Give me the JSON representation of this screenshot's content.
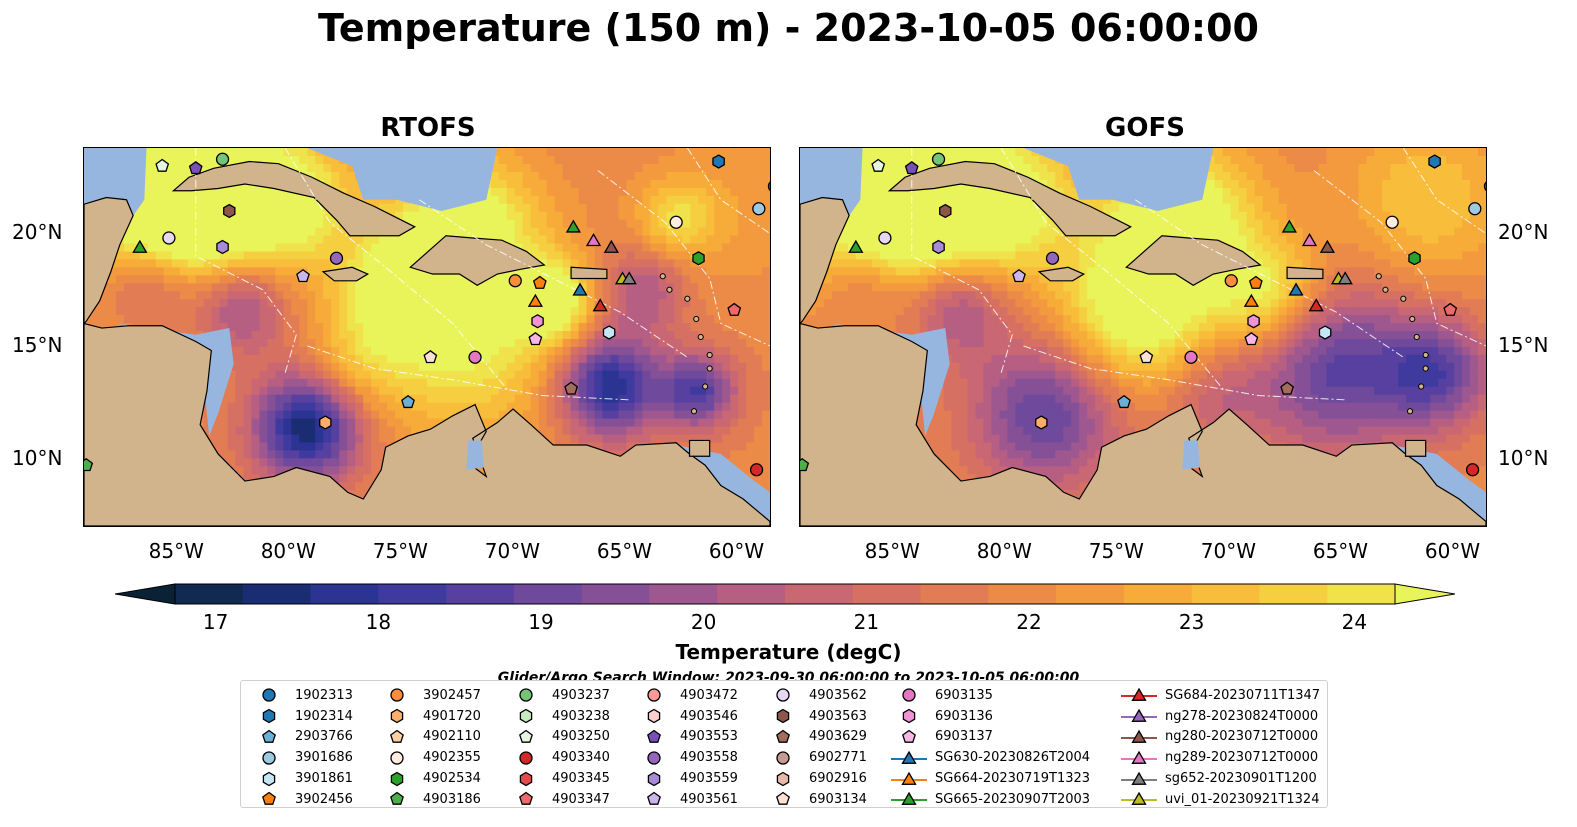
{
  "title": "Temperature (150 m) - 2023-10-05 06:00:00",
  "panels": [
    {
      "title": "RTOFS"
    },
    {
      "title": "GOFS"
    }
  ],
  "x_ticks": [
    "85°W",
    "80°W",
    "75°W",
    "70°W",
    "65°W",
    "60°W"
  ],
  "y_ticks": [
    "20°N",
    "15°N",
    "10°N"
  ],
  "colorbar": {
    "label": "Temperature (degC)",
    "ticks": [
      "17",
      "18",
      "19",
      "20",
      "21",
      "22",
      "23",
      "24"
    ],
    "min": 16.5,
    "max": 24.5,
    "step": 0.25,
    "colors": [
      "#0b2236",
      "#102a52",
      "#1a2d72",
      "#2b3492",
      "#3e3a9e",
      "#5740a0",
      "#6f4a9c",
      "#865097",
      "#9e588f",
      "#b65f82",
      "#c96773",
      "#d67063",
      "#e27c54",
      "#ec8b47",
      "#f39a3e",
      "#f7ab39",
      "#f8bd3a",
      "#f5cf40",
      "#efe24b",
      "#e9f35a"
    ]
  },
  "search_window": "Glider/Argo Search Window: 2023-09-30 06:00:00 to 2023-10-05 06:00:00",
  "legend": [
    [
      {
        "label": "1902313",
        "marker": "circle",
        "color": "#1f77b4"
      },
      {
        "label": "1902314",
        "marker": "hexagon",
        "color": "#1f77b4"
      },
      {
        "label": "2903766",
        "marker": "pentagon",
        "color": "#6baed6"
      },
      {
        "label": "3901686",
        "marker": "circle",
        "color": "#9ecae1"
      },
      {
        "label": "3901861",
        "marker": "hexagon",
        "color": "#c6e6f5"
      },
      {
        "label": "3902456",
        "marker": "pentagon",
        "color": "#ff7f0e"
      }
    ],
    [
      {
        "label": "3902457",
        "marker": "circle",
        "color": "#fd8d3c"
      },
      {
        "label": "4901720",
        "marker": "hexagon",
        "color": "#fdae6b"
      },
      {
        "label": "4902110",
        "marker": "pentagon",
        "color": "#fdd0a2"
      },
      {
        "label": "4902355",
        "marker": "circle",
        "color": "#feedde"
      },
      {
        "label": "4902534",
        "marker": "hexagon",
        "color": "#2ca02c"
      },
      {
        "label": "4903186",
        "marker": "pentagon",
        "color": "#4daf4a"
      }
    ],
    [
      {
        "label": "4903237",
        "marker": "circle",
        "color": "#74c476"
      },
      {
        "label": "4903238",
        "marker": "hexagon",
        "color": "#c7e9c0"
      },
      {
        "label": "4903250",
        "marker": "pentagon",
        "color": "#e5f5e0"
      },
      {
        "label": "4903340",
        "marker": "circle",
        "color": "#d62728"
      },
      {
        "label": "4903345",
        "marker": "hexagon",
        "color": "#e04b4b"
      },
      {
        "label": "4903347",
        "marker": "pentagon",
        "color": "#f0696a"
      }
    ],
    [
      {
        "label": "4903472",
        "marker": "circle",
        "color": "#fc9a9a"
      },
      {
        "label": "4903546",
        "marker": "hexagon",
        "color": "#fdd0cf"
      },
      {
        "label": "4903553",
        "marker": "pentagon",
        "color": "#7b4fb8"
      },
      {
        "label": "4903558",
        "marker": "circle",
        "color": "#9467bd"
      },
      {
        "label": "4903559",
        "marker": "hexagon",
        "color": "#a88ad6"
      },
      {
        "label": "4903561",
        "marker": "pentagon",
        "color": "#cbb5ea"
      }
    ],
    [
      {
        "label": "4903562",
        "marker": "circle",
        "color": "#e6d8f5"
      },
      {
        "label": "4903563",
        "marker": "hexagon",
        "color": "#8c564b"
      },
      {
        "label": "4903629",
        "marker": "pentagon",
        "color": "#a26d5c"
      },
      {
        "label": "6902771",
        "marker": "circle",
        "color": "#c49c94"
      },
      {
        "label": "6902916",
        "marker": "hexagon",
        "color": "#e8b9a9"
      },
      {
        "label": "6903134",
        "marker": "pentagon",
        "color": "#fbe0d6"
      }
    ],
    [
      {
        "label": "6903135",
        "marker": "circle",
        "color": "#e377c2"
      },
      {
        "label": "6903136",
        "marker": "hexagon",
        "color": "#ef93d5"
      },
      {
        "label": "6903137",
        "marker": "pentagon",
        "color": "#f7b6e3"
      },
      {
        "label": "SG630-20230826T2004",
        "marker": "triangle-line",
        "color": "#1f77b4"
      },
      {
        "label": "SG664-20230719T1323",
        "marker": "triangle-line",
        "color": "#ff7f0e"
      },
      {
        "label": "SG665-20230907T2003",
        "marker": "triangle-line",
        "color": "#2ca02c"
      }
    ],
    [
      {
        "label": "SG684-20230711T1347",
        "marker": "triangle-line",
        "color": "#d62728"
      },
      {
        "label": "ng278-20230824T0000",
        "marker": "triangle-line",
        "color": "#9467bd"
      },
      {
        "label": "ng280-20230712T0000",
        "marker": "triangle-line",
        "color": "#8c564b"
      },
      {
        "label": "ng289-20230712T0000",
        "marker": "triangle-line",
        "color": "#e377c2"
      },
      {
        "label": "sg652-20230901T1200",
        "marker": "triangle-line",
        "color": "#7f7f7f"
      },
      {
        "label": "uvi_01-20230921T1324",
        "marker": "triangle-line",
        "color": "#bcbd22"
      }
    ]
  ],
  "observations": [
    {
      "id": "4903250",
      "lon": -85.5,
      "lat": 23.0
    },
    {
      "id": "4903553",
      "lon": -84.0,
      "lat": 22.9
    },
    {
      "id": "4903237",
      "lon": -82.8,
      "lat": 23.3
    },
    {
      "id": "4903563",
      "lon": -82.5,
      "lat": 21.0
    },
    {
      "id": "SG665-20230907T2003",
      "lon": -86.5,
      "lat": 19.4
    },
    {
      "id": "4903562",
      "lon": -85.2,
      "lat": 19.8
    },
    {
      "id": "4903559",
      "lon": -82.8,
      "lat": 19.4
    },
    {
      "id": "4903558",
      "lon": -77.7,
      "lat": 18.9
    },
    {
      "id": "4903561",
      "lon": -79.2,
      "lat": 18.1
    },
    {
      "id": "1902314",
      "lon": -60.6,
      "lat": 23.2
    },
    {
      "id": "1902313",
      "lon": -58.1,
      "lat": 22.1
    },
    {
      "id": "3901686",
      "lon": -58.8,
      "lat": 21.1
    },
    {
      "id": "4902355",
      "lon": -62.5,
      "lat": 20.5
    },
    {
      "id": "SG665-20230907T2003",
      "lon": -67.1,
      "lat": 20.3
    },
    {
      "id": "ng289-20230712T0000",
      "lon": -66.2,
      "lat": 19.7
    },
    {
      "id": "ng280-20230712T0000",
      "lon": -65.4,
      "lat": 19.4
    },
    {
      "id": "4902534",
      "lon": -61.5,
      "lat": 18.9
    },
    {
      "id": "3902457",
      "lon": -69.7,
      "lat": 17.9
    },
    {
      "id": "3902456",
      "lon": -68.6,
      "lat": 17.8
    },
    {
      "id": "SG664-20230719T1323",
      "lon": -68.8,
      "lat": 17.0
    },
    {
      "id": "SG630-20230826T2004",
      "lon": -66.8,
      "lat": 17.5
    },
    {
      "id": "uvi_01-20230921T1324",
      "lon": -64.9,
      "lat": 18.0
    },
    {
      "id": "sg652-20230901T1200",
      "lon": -64.6,
      "lat": 18.0
    },
    {
      "id": "SG684-20230711T1347",
      "lon": -65.9,
      "lat": 16.8
    },
    {
      "id": "6903136",
      "lon": -68.7,
      "lat": 16.1
    },
    {
      "id": "3901861",
      "lon": -65.5,
      "lat": 15.6
    },
    {
      "id": "6903137",
      "lon": -68.8,
      "lat": 15.3
    },
    {
      "id": "4903347",
      "lon": -59.9,
      "lat": 16.6
    },
    {
      "id": "6903134",
      "lon": -73.5,
      "lat": 14.5
    },
    {
      "id": "6903135",
      "lon": -71.5,
      "lat": 14.5
    },
    {
      "id": "2903766",
      "lon": -74.5,
      "lat": 12.5
    },
    {
      "id": "4903629",
      "lon": -67.2,
      "lat": 13.1
    },
    {
      "id": "4901720",
      "lon": -78.2,
      "lat": 11.6
    },
    {
      "id": "4903340",
      "lon": -58.9,
      "lat": 9.5
    },
    {
      "id": "4903186",
      "lon": -88.9,
      "lat": 9.7
    }
  ]
}
